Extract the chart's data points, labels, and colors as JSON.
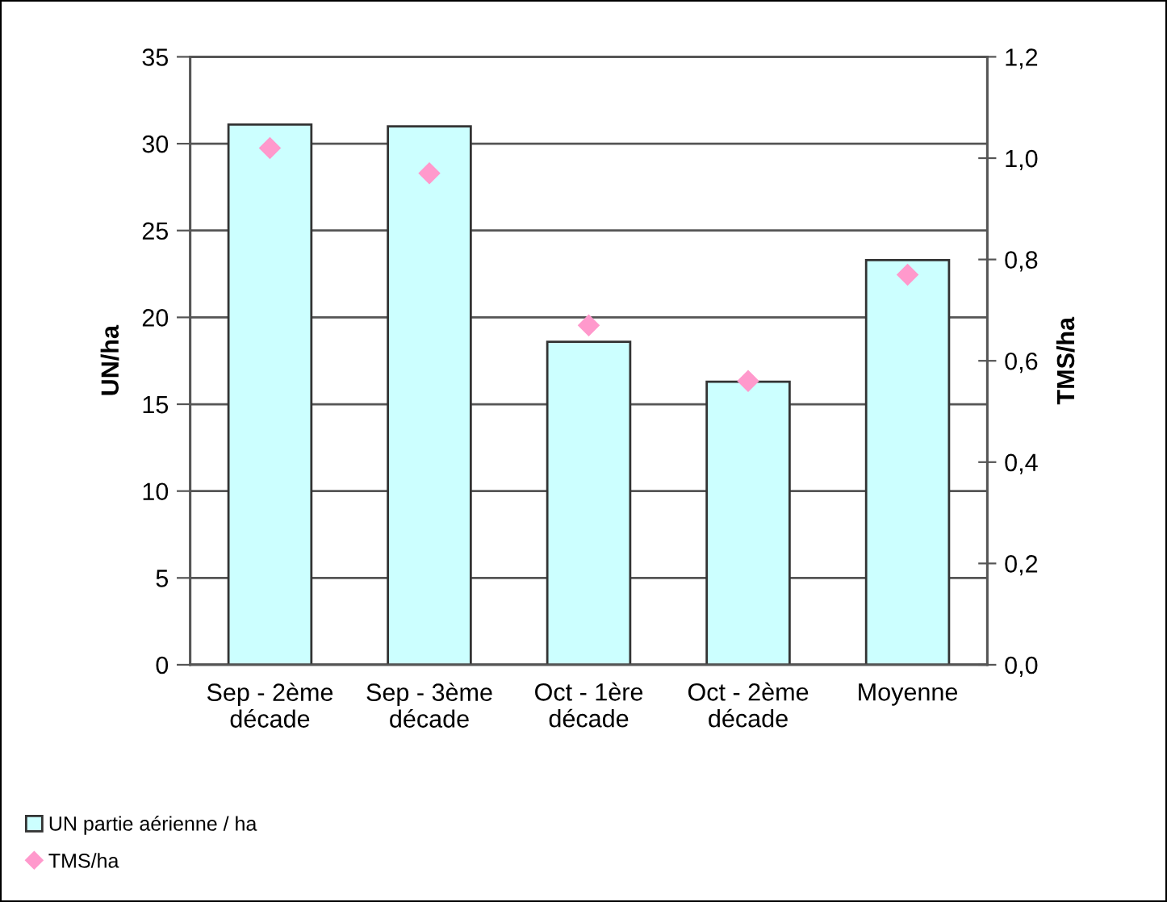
{
  "chart_data": {
    "type": "bar",
    "categories": [
      "Sep - 2ème\ndécade",
      "Sep - 3ème\ndécade",
      "Oct - 1ère\ndécade",
      "Oct - 2ème\ndécade",
      "Moyenne"
    ],
    "series": [
      {
        "name": "UN partie aérienne / ha",
        "color": "#ccffff",
        "values": [
          31.1,
          31.0,
          18.6,
          16.3,
          23.3
        ]
      },
      {
        "name": "TMS/ha",
        "type": "scatter",
        "axis": "y2",
        "color": "#ff99cc",
        "values": [
          1.02,
          0.97,
          0.67,
          0.56,
          0.77
        ]
      }
    ],
    "ylabel": "UN/ha",
    "y2label": "TMS/ha",
    "ylim": [
      0,
      35
    ],
    "yticks": [
      0,
      5,
      10,
      15,
      20,
      25,
      30,
      35
    ],
    "y2lim": [
      0,
      1.2
    ],
    "y2ticks": [
      {
        "value": 0,
        "label": "0,0"
      },
      {
        "value": 0.2,
        "label": "0,2"
      },
      {
        "value": 0.4,
        "label": "0,4"
      },
      {
        "value": 0.6,
        "label": "0,6"
      },
      {
        "value": 0.8,
        "label": "0,8"
      },
      {
        "value": 1.0,
        "label": "1,0"
      },
      {
        "value": 1.2,
        "label": "1,2"
      }
    ],
    "grid": "y",
    "legend": "bottom left",
    "marker": "diamond"
  }
}
